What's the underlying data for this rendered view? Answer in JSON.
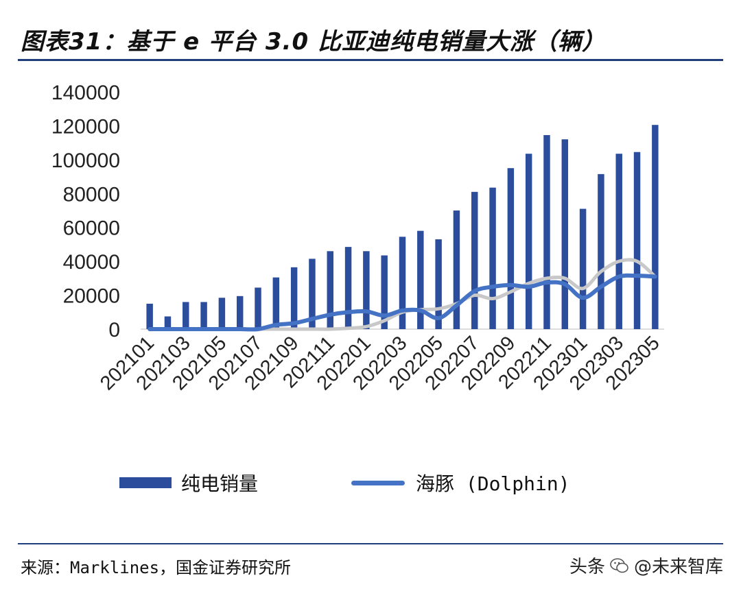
{
  "header": {
    "title": "图表31：基于 e 平台 3.0 比亚迪纯电销量大涨（辆）"
  },
  "footer": {
    "source": "来源：Marklines，国金证券研究所",
    "watermark_prefix": "头条",
    "watermark_text": "@未来智库"
  },
  "chart_data": {
    "type": "bar",
    "title": "",
    "xlabel": "",
    "ylabel": "",
    "ylim": [
      0,
      140000
    ],
    "yticks": [
      0,
      20000,
      40000,
      60000,
      80000,
      100000,
      120000,
      140000
    ],
    "tick_labels": [
      "202101",
      "202103",
      "202105",
      "202107",
      "202109",
      "202111",
      "202201",
      "202203",
      "202205",
      "202207",
      "202209",
      "202211",
      "202301",
      "202303",
      "202305"
    ],
    "categories": [
      "202101",
      "202102",
      "202103",
      "202104",
      "202105",
      "202106",
      "202107",
      "202108",
      "202109",
      "202110",
      "202111",
      "202112",
      "202201",
      "202202",
      "202203",
      "202204",
      "202205",
      "202206",
      "202207",
      "202208",
      "202209",
      "202210",
      "202211",
      "202212",
      "202301",
      "202302",
      "202303",
      "202304",
      "202305"
    ],
    "series": [
      {
        "name": "纯电销量",
        "type": "bar",
        "color": "#2b4d9c",
        "values": [
          15000,
          7500,
          16000,
          16000,
          18500,
          19500,
          24500,
          30500,
          36500,
          41500,
          46000,
          48500,
          46000,
          43500,
          54500,
          58000,
          53000,
          70000,
          81000,
          83500,
          95000,
          103500,
          114500,
          112000,
          71000,
          91500,
          103500,
          104500,
          120500
        ]
      },
      {
        "name": "海豚 (Dolphin)",
        "type": "line",
        "color": "#4472c4",
        "values": [
          0,
          0,
          0,
          0,
          0,
          0,
          0,
          2500,
          3500,
          6000,
          8500,
          10000,
          10500,
          8000,
          11000,
          11000,
          6500,
          14000,
          22500,
          25000,
          26000,
          25000,
          27500,
          26500,
          18500,
          25000,
          31000,
          31500,
          31000
        ]
      },
      {
        "name": "",
        "type": "line",
        "color": "#c8c8c8",
        "values": [
          0,
          0,
          0,
          0,
          0,
          0,
          0,
          0,
          0,
          0,
          0,
          500,
          1500,
          5000,
          10000,
          11500,
          12000,
          15000,
          20000,
          18000,
          22000,
          27000,
          30000,
          30000,
          24000,
          34000,
          40000,
          40000,
          31000
        ]
      }
    ],
    "grid": false,
    "legend": "bottom"
  }
}
